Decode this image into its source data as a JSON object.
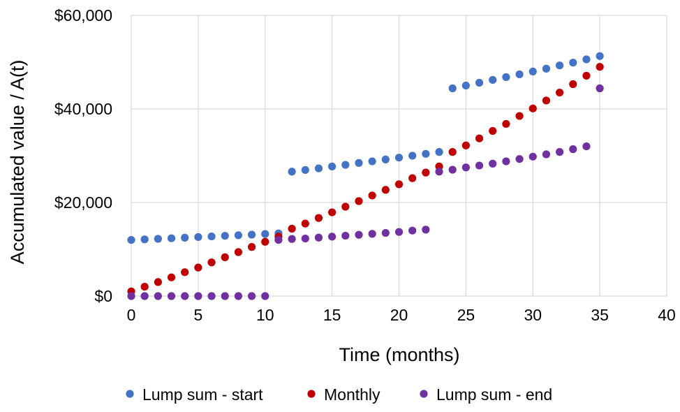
{
  "chart_data": {
    "type": "scatter",
    "xlabel": "Time (months)",
    "ylabel": "Accumulated value / A(t)",
    "xlim": [
      0,
      40
    ],
    "ylim": [
      0,
      60000
    ],
    "x_ticks": [
      0,
      5,
      10,
      15,
      20,
      25,
      30,
      35,
      40
    ],
    "y_ticks": [
      0,
      20000,
      40000,
      60000
    ],
    "x_tick_labels": [
      "0",
      "5",
      "10",
      "15",
      "20",
      "25",
      "30",
      "35",
      "40"
    ],
    "y_tick_labels": [
      "$0",
      "$20,000",
      "$40,000",
      "$60,000"
    ],
    "grid": true,
    "legend_position": "bottom",
    "series": [
      {
        "name": "Lump sum - start",
        "color": "#4472c4",
        "x": [
          0,
          1,
          2,
          3,
          4,
          5,
          6,
          7,
          8,
          9,
          10,
          11,
          12,
          13,
          14,
          15,
          16,
          17,
          18,
          19,
          20,
          21,
          22,
          23,
          24,
          25,
          26,
          27,
          28,
          29,
          30,
          31,
          32,
          33,
          34,
          35
        ],
        "y": [
          12000,
          12120,
          12240,
          12360,
          12480,
          12620,
          12750,
          12880,
          13000,
          13130,
          13270,
          13400,
          26600,
          26950,
          27300,
          27700,
          28050,
          28450,
          28800,
          29200,
          29600,
          30000,
          30400,
          30800,
          44400,
          45000,
          45600,
          46200,
          46800,
          47400,
          48000,
          48600,
          49300,
          49900,
          50600,
          51300
        ]
      },
      {
        "name": "Monthly",
        "color": "#c00000",
        "x": [
          0,
          1,
          2,
          3,
          4,
          5,
          6,
          7,
          8,
          9,
          10,
          11,
          12,
          13,
          14,
          15,
          16,
          17,
          18,
          19,
          20,
          21,
          22,
          23,
          24,
          25,
          26,
          27,
          28,
          29,
          30,
          31,
          32,
          33,
          34,
          35
        ],
        "y": [
          1000,
          2000,
          3000,
          4000,
          5100,
          6100,
          7200,
          8300,
          9400,
          10500,
          11600,
          12700,
          14400,
          15500,
          16700,
          17900,
          19100,
          20300,
          21500,
          22700,
          23900,
          25200,
          26400,
          27700,
          30800,
          32200,
          33700,
          35300,
          36800,
          38500,
          40100,
          41800,
          43500,
          45300,
          47100,
          49000
        ]
      },
      {
        "name": "Lump sum - end",
        "color": "#7030a0",
        "x": [
          0,
          1,
          2,
          3,
          4,
          5,
          6,
          7,
          8,
          9,
          10,
          11,
          12,
          13,
          14,
          15,
          16,
          17,
          18,
          19,
          20,
          21,
          22,
          23,
          24,
          25,
          26,
          27,
          28,
          29,
          30,
          31,
          32,
          33,
          34,
          35
        ],
        "y": [
          0,
          0,
          0,
          0,
          0,
          0,
          0,
          0,
          0,
          0,
          0,
          12000,
          12200,
          12300,
          12500,
          12700,
          12900,
          13100,
          13300,
          13500,
          13700,
          14000,
          14200,
          26600,
          27000,
          27500,
          27900,
          28300,
          28800,
          29300,
          29800,
          30300,
          30800,
          31400,
          32000,
          44400
        ]
      }
    ]
  }
}
